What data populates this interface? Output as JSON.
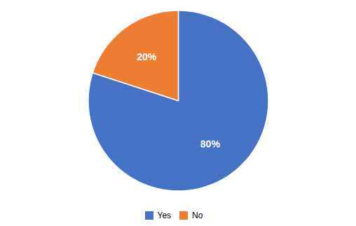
{
  "chart_data": {
    "type": "pie",
    "categories": [
      "Yes",
      "No"
    ],
    "values": [
      80,
      20
    ],
    "value_labels": [
      "80%",
      "20%"
    ],
    "colors": [
      "#4472C4",
      "#ED7D31"
    ],
    "data_labels": true,
    "legend": "bottom"
  }
}
